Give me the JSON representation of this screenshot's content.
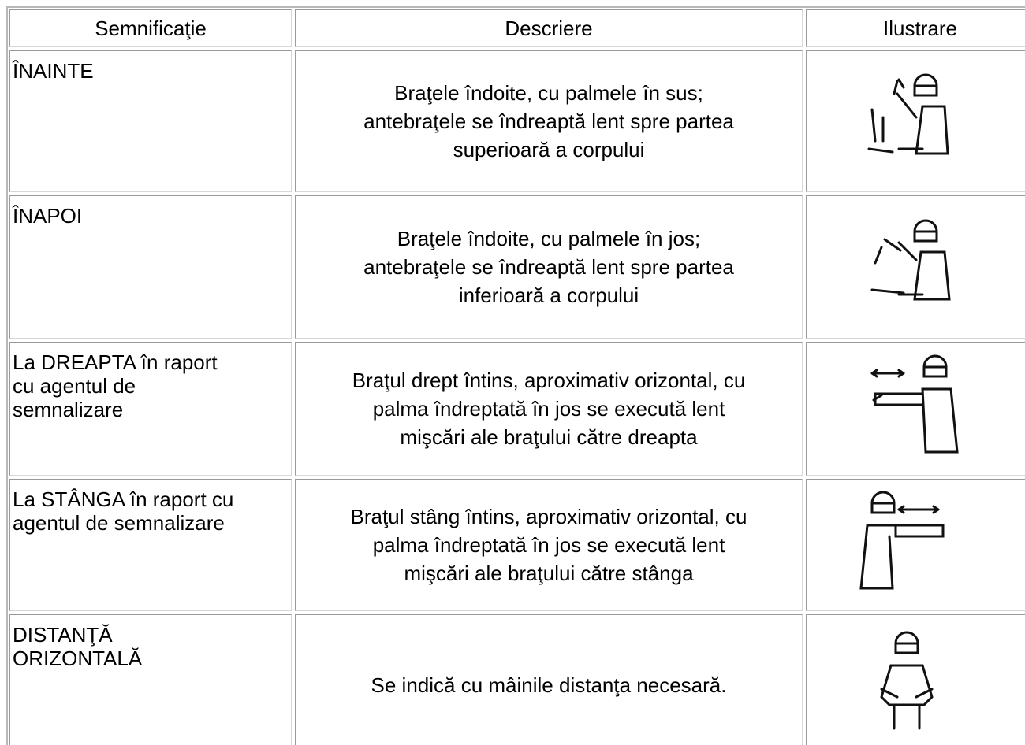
{
  "table": {
    "header": [
      "Semnificaţie",
      "Descriere",
      "Ilustrare"
    ],
    "rows": [
      {
        "label": [
          "ÎNAINTE"
        ],
        "description": [
          "Braţele îndoite, cu palmele în sus;",
          "antebraţele se îndreaptă lent spre partea",
          "superioară a corpului"
        ]
      },
      {
        "label": [
          "ÎNAPOI"
        ],
        "description": [
          "Braţele îndoite, cu palmele în jos;",
          "antebraţele se îndreaptă lent spre partea",
          "inferioară a corpului"
        ]
      },
      {
        "label": [
          "La DREAPTA în raport",
          "cu agentul de",
          "semnalizare"
        ],
        "description": [
          "Braţul drept întins, aproximativ orizontal, cu",
          "palma îndreptată în jos se execută lent",
          "mişcări ale braţului către dreapta"
        ]
      },
      {
        "label": [
          "La STÂNGA în raport cu",
          "agentul de semnalizare"
        ],
        "description": [
          "Braţul stâng întins, aproximativ orizontal, cu",
          "palma îndreptată în jos se execută lent",
          "mişcări ale braţului către stânga"
        ]
      },
      {
        "label": [
          "DISTANŢĂ",
          "ORIZONTALĂ"
        ],
        "description": [
          "Se indică cu mâinile distanţa necesară."
        ]
      }
    ]
  }
}
